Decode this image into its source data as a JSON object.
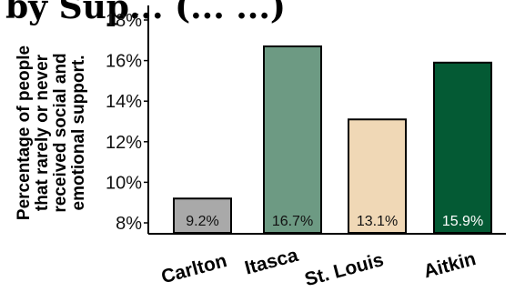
{
  "chart_data": {
    "type": "bar",
    "title": "by Sup... (... ...)",
    "ylabel_lines": [
      "Percentage of people",
      "that rarely or never",
      "received social and",
      "emotional support."
    ],
    "categories": [
      "Carlton",
      "Itasca",
      "St. Louis",
      "Aitkin"
    ],
    "values": [
      9.2,
      16.7,
      13.1,
      15.9
    ],
    "data_labels": [
      "9.2%",
      "16.7%",
      "13.1%",
      "15.9%"
    ],
    "colors": [
      "#a9a9a9",
      "#6d9a83",
      "#f0d8b6",
      "#045a34"
    ],
    "label_colors": [
      "#111111",
      "#111111",
      "#111111",
      "#ffffff"
    ],
    "ylim": [
      7.5,
      18.5
    ],
    "yticks": [
      8,
      10,
      12,
      14,
      16,
      18
    ],
    "ytick_labels": [
      "8%",
      "10%",
      "12%",
      "14%",
      "16%",
      "18%"
    ],
    "grid": false,
    "legend": "none"
  }
}
